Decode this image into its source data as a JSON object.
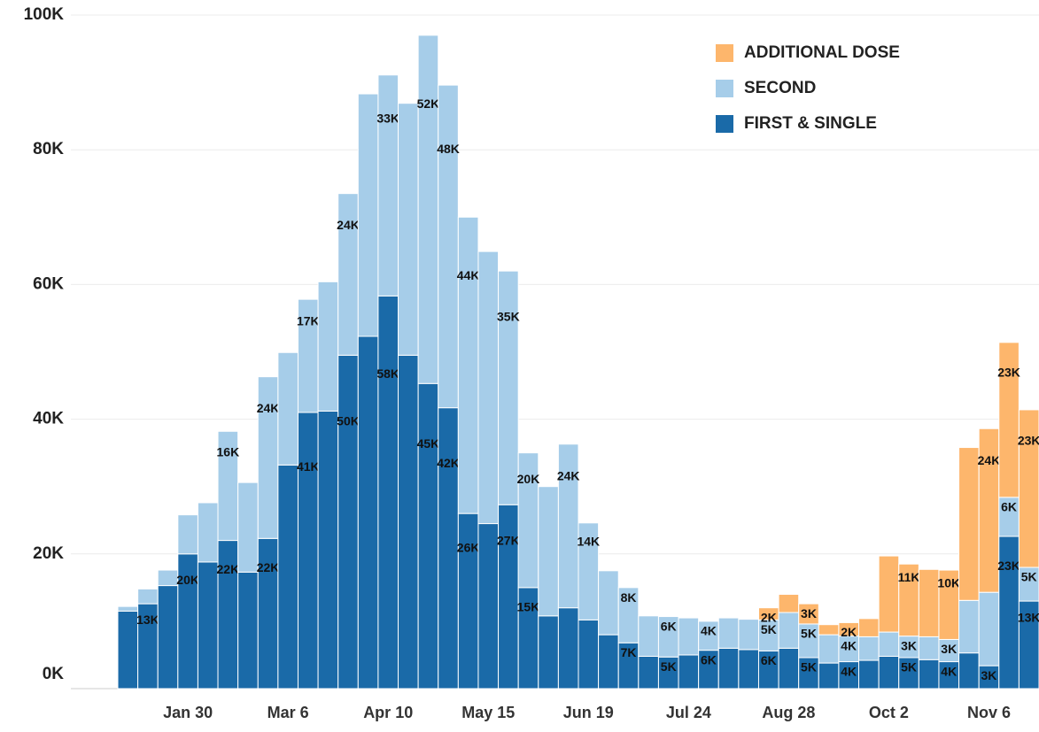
{
  "chart_data": {
    "type": "stacked_bar",
    "categories": [
      null,
      null,
      null,
      "Jan 30",
      null,
      null,
      null,
      null,
      "Mar 6",
      null,
      null,
      null,
      null,
      "Apr 10",
      null,
      null,
      null,
      null,
      "May 15",
      null,
      null,
      null,
      null,
      "Jun 19",
      null,
      null,
      null,
      null,
      "Jul 24",
      null,
      null,
      null,
      null,
      "Aug 28",
      null,
      null,
      null,
      null,
      "Oct 2",
      null,
      null,
      null,
      null,
      "Nov 6",
      null,
      null
    ],
    "series": [
      {
        "name": "FIRST & SINGLE",
        "color": "#1a6aa8",
        "values": [
          11.5,
          12.6,
          15.3,
          20,
          18.8,
          22,
          17.3,
          22.3,
          33.2,
          41,
          41.2,
          49.5,
          52.3,
          58.3,
          49.5,
          45.3,
          41.7,
          26,
          24.5,
          27.3,
          15,
          10.8,
          12,
          10.2,
          8,
          6.8,
          4.8,
          4.7,
          5,
          5.7,
          6,
          5.8,
          5.6,
          6,
          4.6,
          3.8,
          4,
          4.2,
          4.8,
          4.6,
          4.3,
          4,
          5.3,
          3.4,
          22.6,
          13
        ],
        "value_labels": [
          null,
          "13K",
          null,
          "20K",
          null,
          "22K",
          null,
          "22K",
          null,
          "41K",
          null,
          "50K",
          null,
          "58K",
          null,
          "45K",
          "42K",
          "26K",
          null,
          "27K",
          "15K",
          null,
          null,
          null,
          null,
          "7K",
          null,
          "5K",
          null,
          "6K",
          null,
          null,
          "6K",
          null,
          "5K",
          null,
          "4K",
          null,
          null,
          "5K",
          null,
          "4K",
          null,
          "3K",
          "23K",
          "13K"
        ]
      },
      {
        "name": "SECOND",
        "color": "#a6cde9",
        "values": [
          0.7,
          2.2,
          2.3,
          5.8,
          8.8,
          16.2,
          13.3,
          24,
          16.7,
          16.8,
          19.2,
          24,
          36,
          32.8,
          37.4,
          51.7,
          47.9,
          44,
          40.4,
          34.7,
          20,
          19.2,
          24.3,
          14.4,
          9.5,
          8.2,
          6,
          6,
          5.5,
          4.3,
          4.5,
          4.5,
          4.6,
          5.3,
          5,
          4.2,
          3.8,
          3.5,
          3.6,
          3.2,
          3.4,
          3.3,
          7.8,
          10.9,
          5.8,
          5
        ],
        "value_labels": [
          null,
          null,
          null,
          null,
          null,
          "16K",
          null,
          "24K",
          null,
          "17K",
          null,
          "24K",
          null,
          "33K",
          null,
          "52K",
          "48K",
          "44K",
          null,
          "35K",
          "20K",
          null,
          "24K",
          "14K",
          null,
          "8K",
          null,
          "6K",
          null,
          "4K",
          null,
          null,
          "5K",
          null,
          "5K",
          null,
          "4K",
          null,
          null,
          "3K",
          null,
          "3K",
          null,
          null,
          "6K",
          "5K"
        ]
      },
      {
        "name": "ADDITIONAL DOSE",
        "color": "#fdb66c",
        "values": [
          0,
          0,
          0,
          0,
          0,
          0,
          0,
          0,
          0,
          0,
          0,
          0,
          0,
          0,
          0,
          0,
          0,
          0,
          0,
          0,
          0,
          0,
          0,
          0,
          0,
          0,
          0,
          0,
          0,
          0,
          0,
          0,
          1.8,
          2.7,
          3,
          1.5,
          2,
          2.7,
          11.3,
          10.7,
          10,
          10.3,
          22.7,
          24.3,
          23,
          23.4
        ],
        "value_labels": [
          null,
          null,
          null,
          null,
          null,
          null,
          null,
          null,
          null,
          null,
          null,
          null,
          null,
          null,
          null,
          null,
          null,
          null,
          null,
          null,
          null,
          null,
          null,
          null,
          null,
          null,
          null,
          null,
          null,
          null,
          null,
          null,
          "2K",
          null,
          "3K",
          null,
          "2K",
          null,
          null,
          "11K",
          null,
          "10K",
          null,
          "24K",
          "23K",
          "23K"
        ]
      }
    ],
    "ylim": [
      0,
      100
    ],
    "yticks": [
      {
        "value": 0,
        "label": "0K"
      },
      {
        "value": 20,
        "label": "20K"
      },
      {
        "value": 40,
        "label": "40K"
      },
      {
        "value": 60,
        "label": "60K"
      },
      {
        "value": 80,
        "label": "80K"
      },
      {
        "value": 100,
        "label": "100K"
      }
    ],
    "grid": true,
    "legend": "upper right"
  }
}
